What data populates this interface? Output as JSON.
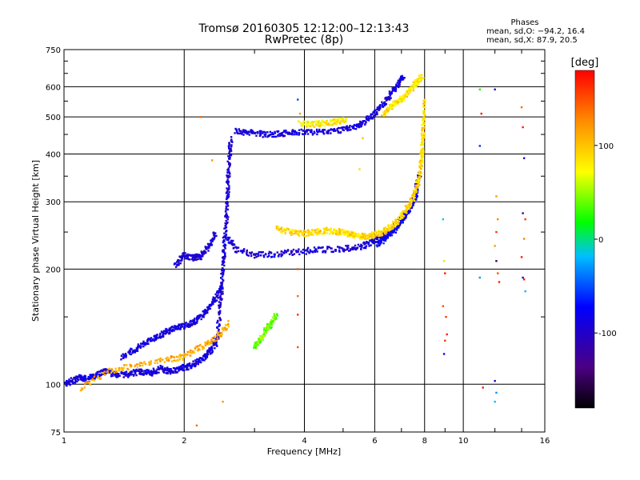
{
  "chart_data": {
    "type": "scatter",
    "title": "Tromsø 20160305 12:12:00–12:13:43",
    "subtitle": "RwPretec (8p)",
    "xlabel": "Frequency [MHz]",
    "ylabel": "Stationary phase Virtual Height [km]",
    "x_scale": "log",
    "y_scale": "log",
    "xlim": [
      1,
      16
    ],
    "ylim": [
      75,
      750
    ],
    "x_ticks": [
      1,
      2,
      4,
      6,
      8,
      10,
      16
    ],
    "y_ticks": [
      75,
      100,
      200,
      300,
      400,
      500,
      600,
      750
    ],
    "grid": true,
    "phase_stats": {
      "title": "Phases",
      "line1": "mean, sd,O: −94.2, 16.4",
      "line2": "mean, sd,X:  87.9, 20.5"
    },
    "colorbar": {
      "label": "[deg]",
      "range": [
        -180,
        180
      ],
      "ticks": [
        100,
        0,
        -100
      ],
      "colors": [
        "#000000",
        "#4b0082",
        "#0000ff",
        "#00bfff",
        "#00ff00",
        "#ffff00",
        "#ff8c00",
        "#ff0000"
      ]
    },
    "traces": [
      {
        "phase": -90,
        "x": [
          1.0,
          1.05,
          1.1,
          1.15,
          1.2,
          1.27,
          1.35,
          1.45,
          1.55,
          1.65,
          1.75,
          1.85,
          1.95,
          2.05,
          2.15,
          2.25,
          2.35,
          2.45
        ],
        "y": [
          100,
          102,
          104,
          103,
          106,
          108,
          106,
          106,
          108,
          107,
          110,
          108,
          110,
          111,
          114,
          118,
          124,
          138
        ]
      },
      {
        "phase": -90,
        "x": [
          1.4,
          1.5,
          1.6,
          1.7,
          1.8,
          1.9,
          2.0,
          2.1,
          2.2,
          2.3,
          2.4,
          2.5
        ],
        "y": [
          118,
          123,
          128,
          133,
          137,
          140,
          142,
          145,
          150,
          158,
          168,
          182
        ]
      },
      {
        "phase": -95,
        "x": [
          2.4,
          2.45,
          2.48,
          2.5,
          2.52,
          2.55,
          2.57,
          2.58,
          2.6,
          2.62
        ],
        "y": [
          125,
          150,
          175,
          200,
          230,
          270,
          310,
          350,
          400,
          440
        ]
      },
      {
        "phase": -95,
        "x": [
          1.9,
          2.0,
          2.1,
          2.2,
          2.3,
          2.4
        ],
        "y": [
          205,
          218,
          214,
          216,
          228,
          250
        ]
      },
      {
        "phase": -95,
        "x": [
          2.55,
          2.7,
          3.0,
          3.4,
          3.8,
          4.3,
          4.9,
          5.5,
          5.9,
          6.2,
          6.5,
          6.8,
          7.1,
          7.4,
          7.6,
          7.8
        ],
        "y": [
          245,
          225,
          218,
          218,
          222,
          224,
          226,
          228,
          235,
          242,
          250,
          260,
          275,
          295,
          320,
          360
        ]
      },
      {
        "phase": -90,
        "x": [
          2.7,
          2.9,
          3.2,
          3.5,
          3.8,
          4.2,
          4.7,
          5.2,
          5.6,
          6.0,
          6.3,
          6.6,
          6.9,
          7.1
        ],
        "y": [
          460,
          455,
          450,
          452,
          456,
          455,
          458,
          466,
          482,
          510,
          540,
          575,
          610,
          640
        ]
      },
      {
        "phase": -80,
        "x": [
          6.1,
          6.4,
          6.7,
          7.0,
          7.3,
          7.5,
          7.7
        ],
        "y": [
          232,
          240,
          252,
          268,
          285,
          300,
          320
        ]
      },
      {
        "phase": 90,
        "x": [
          3.4,
          3.7,
          4.0,
          4.3,
          4.6,
          4.9,
          5.2,
          5.4,
          5.7,
          6.0,
          6.3,
          6.6,
          6.9,
          7.2,
          7.4,
          7.6,
          7.75,
          7.85,
          7.9,
          7.95,
          8.0
        ],
        "y": [
          255,
          250,
          248,
          250,
          252,
          250,
          247,
          244,
          244,
          246,
          250,
          258,
          270,
          286,
          300,
          320,
          345,
          380,
          420,
          480,
          560
        ]
      },
      {
        "phase": 85,
        "x": [
          6.3,
          6.6,
          6.9,
          7.2,
          7.5,
          7.7,
          7.9
        ],
        "y": [
          510,
          530,
          550,
          570,
          600,
          620,
          640
        ]
      },
      {
        "phase": 80,
        "x": [
          3.9,
          4.2,
          4.5,
          4.8,
          5.1
        ],
        "y": [
          480,
          478,
          482,
          486,
          490
        ]
      },
      {
        "phase": 40,
        "x": [
          3.0,
          3.1,
          3.2,
          3.3,
          3.4
        ],
        "y": [
          125,
          131,
          138,
          144,
          152
        ]
      },
      {
        "phase": 110,
        "x": [
          1.1,
          1.3,
          1.5,
          1.8,
          2.0,
          2.2,
          2.4,
          2.6
        ],
        "y": [
          98,
          108,
          112,
          116,
          118,
          125,
          132,
          145
        ]
      }
    ],
    "scatter_points": [
      {
        "x": 3.85,
        "y": 555,
        "phase": -50
      },
      {
        "x": 3.9,
        "y": 510,
        "phase": 120
      },
      {
        "x": 3.85,
        "y": 200,
        "phase": 150
      },
      {
        "x": 3.85,
        "y": 170,
        "phase": 140
      },
      {
        "x": 3.85,
        "y": 152,
        "phase": 160
      },
      {
        "x": 3.85,
        "y": 125,
        "phase": 150
      },
      {
        "x": 2.2,
        "y": 500,
        "phase": 140
      },
      {
        "x": 2.35,
        "y": 385,
        "phase": 120
      },
      {
        "x": 2.5,
        "y": 90,
        "phase": 120
      },
      {
        "x": 2.15,
        "y": 78,
        "phase": 140
      },
      {
        "x": 5.5,
        "y": 365,
        "phase": 90
      },
      {
        "x": 5.6,
        "y": 440,
        "phase": 100
      },
      {
        "x": 8.9,
        "y": 270,
        "phase": -10
      },
      {
        "x": 8.95,
        "y": 210,
        "phase": 60
      },
      {
        "x": 9.0,
        "y": 195,
        "phase": 170
      },
      {
        "x": 8.9,
        "y": 160,
        "phase": 150
      },
      {
        "x": 9.05,
        "y": 150,
        "phase": 160
      },
      {
        "x": 9.1,
        "y": 135,
        "phase": 170
      },
      {
        "x": 9.0,
        "y": 130,
        "phase": 160
      },
      {
        "x": 8.95,
        "y": 120,
        "phase": -80
      },
      {
        "x": 11.0,
        "y": 590,
        "phase": 20
      },
      {
        "x": 11.1,
        "y": 510,
        "phase": 170
      },
      {
        "x": 11.0,
        "y": 420,
        "phase": -60
      },
      {
        "x": 11.0,
        "y": 190,
        "phase": -30
      },
      {
        "x": 11.2,
        "y": 98,
        "phase": 170
      },
      {
        "x": 12.0,
        "y": 590,
        "phase": -100
      },
      {
        "x": 12.1,
        "y": 310,
        "phase": 120
      },
      {
        "x": 12.2,
        "y": 270,
        "phase": 130
      },
      {
        "x": 12.1,
        "y": 250,
        "phase": 160
      },
      {
        "x": 12.0,
        "y": 230,
        "phase": 120
      },
      {
        "x": 12.1,
        "y": 210,
        "phase": -150
      },
      {
        "x": 12.3,
        "y": 185,
        "phase": 170
      },
      {
        "x": 12.2,
        "y": 195,
        "phase": 150
      },
      {
        "x": 12.0,
        "y": 102,
        "phase": -100
      },
      {
        "x": 12.1,
        "y": 95,
        "phase": -30
      },
      {
        "x": 12.0,
        "y": 90,
        "phase": -20
      },
      {
        "x": 14.0,
        "y": 530,
        "phase": 140
      },
      {
        "x": 14.1,
        "y": 470,
        "phase": 170
      },
      {
        "x": 14.2,
        "y": 390,
        "phase": -100
      },
      {
        "x": 14.1,
        "y": 280,
        "phase": -130
      },
      {
        "x": 14.3,
        "y": 270,
        "phase": 160
      },
      {
        "x": 14.2,
        "y": 240,
        "phase": 130
      },
      {
        "x": 14.0,
        "y": 215,
        "phase": 170
      },
      {
        "x": 14.1,
        "y": 190,
        "phase": -100
      },
      {
        "x": 14.2,
        "y": 188,
        "phase": 170
      },
      {
        "x": 14.3,
        "y": 175,
        "phase": -20
      }
    ]
  }
}
